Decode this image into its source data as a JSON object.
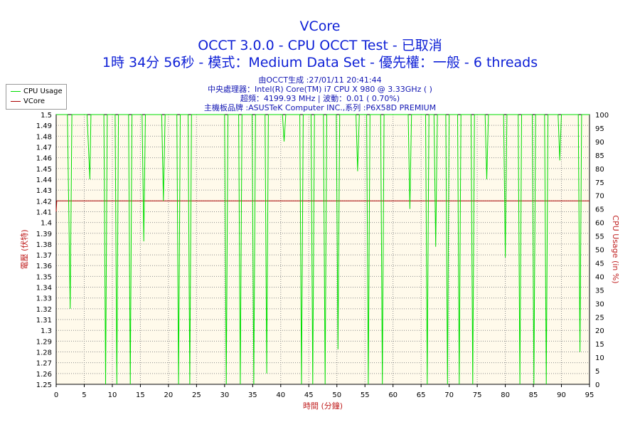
{
  "header": {
    "title": "VCore",
    "subtitle": "OCCT 3.0.0 - CPU OCCT Test - 已取消",
    "run_info": "1時 34分 56秒 - 模式：Medium Data Set - 優先權：一般 - 6 threads",
    "generated": "由OCCT生成 :27/01/11 20:41:44",
    "cpu": "中央處理器：Intel(R) Core(TM) i7 CPU X 980 @ 3.33GHz (    )",
    "freq": "超頻：4199.93 MHz | 波動：0.01 ( 0.70%)",
    "board": "主機板品牌 :ASUSTeK Computer INC.,系列 :P6X58D PREMIUM"
  },
  "legend": {
    "cpu_usage": "CPU Usage",
    "vcore": "VCore"
  },
  "colors": {
    "cpu_usage": "#00dd00",
    "vcore": "#aa0000",
    "plot_bg": "#fffaeb",
    "grid": "#8c8c8c",
    "title": "#0d1fd6",
    "axis_title": "#c02020"
  },
  "chart_data": {
    "type": "line",
    "xlabel": "時間 (分鐘)",
    "ylabel": "電壓 (伏特)",
    "y2label": "CPU Usage (in %)",
    "xlim": [
      0,
      95
    ],
    "ylim": [
      1.25,
      1.5
    ],
    "y2lim": [
      0,
      100
    ],
    "x_ticks": [
      0,
      5,
      10,
      15,
      20,
      25,
      30,
      35,
      40,
      45,
      50,
      55,
      60,
      65,
      70,
      75,
      80,
      85,
      90,
      95
    ],
    "y_ticks": [
      1.25,
      1.26,
      1.27,
      1.28,
      1.29,
      1.3,
      1.31,
      1.32,
      1.33,
      1.34,
      1.35,
      1.36,
      1.37,
      1.38,
      1.39,
      1.4,
      1.41,
      1.42,
      1.43,
      1.44,
      1.45,
      1.46,
      1.47,
      1.48,
      1.49,
      1.5
    ],
    "y2_ticks": [
      0,
      5,
      10,
      15,
      20,
      25,
      30,
      35,
      40,
      45,
      50,
      55,
      60,
      65,
      70,
      75,
      80,
      85,
      90,
      95,
      100
    ],
    "grid": true,
    "legend_position": "top-left",
    "series": [
      {
        "name": "VCore",
        "axis": "left",
        "x": [
          0,
          0.1,
          95
        ],
        "y": [
          1.41,
          1.42,
          1.42
        ]
      },
      {
        "name": "CPU Usage",
        "axis": "right",
        "x": [
          0,
          2,
          2.5,
          2.8,
          5.5,
          6,
          6.2,
          8.5,
          8.8,
          9.1,
          10.5,
          10.8,
          11.1,
          12.9,
          13.2,
          13.5,
          15.3,
          15.6,
          15.9,
          18.8,
          19.1,
          19.4,
          21.5,
          21.8,
          22.1,
          23.5,
          23.8,
          24.1,
          30,
          30.3,
          30.6,
          32.5,
          32.8,
          33.1,
          34.9,
          35.2,
          35.5,
          37.2,
          37.5,
          37.8,
          40.3,
          40.6,
          40.9,
          43.4,
          43.7,
          44,
          45.4,
          45.7,
          46,
          47.6,
          47.9,
          48.2,
          49.9,
          50.2,
          50.5,
          53.4,
          53.7,
          54,
          55.3,
          55.6,
          55.9,
          57.8,
          58.1,
          58.4,
          62.7,
          63,
          63.3,
          65.8,
          66.1,
          66.4,
          67.3,
          67.6,
          67.9,
          69.4,
          69.7,
          70,
          71.5,
          71.8,
          72.1,
          73.9,
          74.2,
          74.5,
          76.4,
          76.7,
          77,
          79.7,
          80,
          80.3,
          82.3,
          82.6,
          82.9,
          84.8,
          85.1,
          85.4,
          87,
          87.3,
          87.6,
          89.4,
          89.7,
          90,
          93,
          93.3,
          93.6,
          95
        ],
        "y": [
          100,
          100,
          28,
          100,
          100,
          76,
          100,
          100,
          0,
          100,
          100,
          0,
          100,
          100,
          0,
          100,
          100,
          53,
          100,
          100,
          68,
          100,
          100,
          0,
          100,
          100,
          0,
          100,
          100,
          0,
          100,
          100,
          0,
          100,
          100,
          0,
          100,
          100,
          4,
          100,
          100,
          90,
          100,
          100,
          0,
          100,
          100,
          0,
          100,
          100,
          0,
          100,
          100,
          13,
          100,
          100,
          79,
          100,
          100,
          0,
          100,
          100,
          0,
          100,
          100,
          65,
          100,
          100,
          0,
          100,
          100,
          51,
          100,
          100,
          0,
          100,
          100,
          0,
          100,
          100,
          0,
          100,
          100,
          76,
          100,
          100,
          47,
          100,
          100,
          0,
          100,
          100,
          0,
          100,
          100,
          0,
          100,
          100,
          83,
          100,
          100,
          12,
          100,
          100
        ]
      }
    ]
  }
}
